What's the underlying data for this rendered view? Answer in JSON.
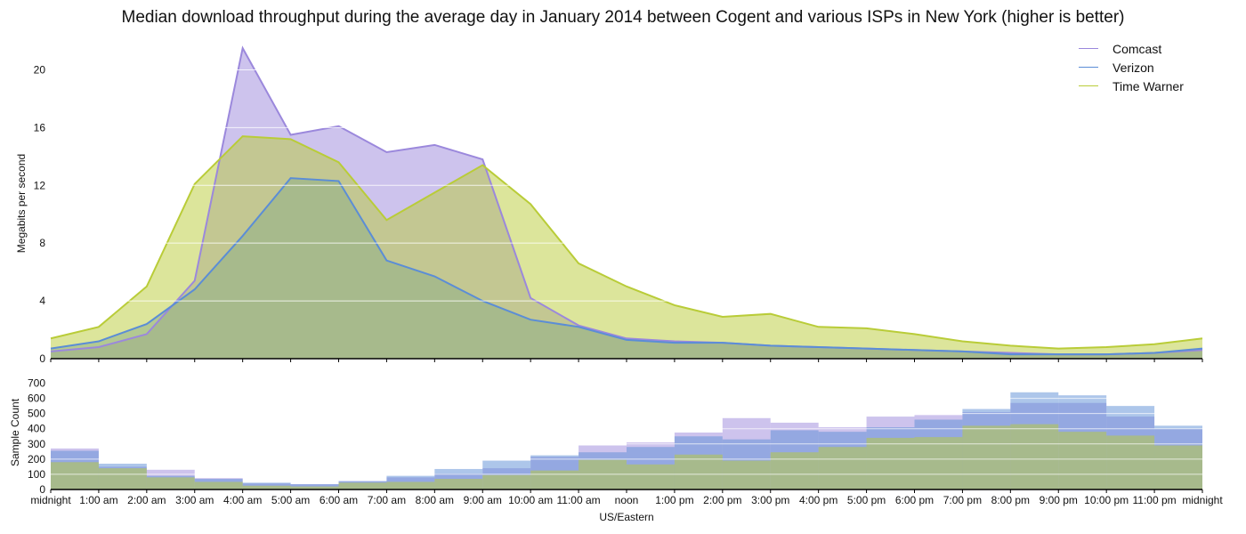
{
  "title": "Median download throughput during the average day in January 2014 between Cogent and various ISPs in New York (higher is better)",
  "colors": {
    "Comcast": "#9b88dc",
    "Verizon": "#5b8dd6",
    "Time Warner": "#b9cc38",
    "grid": "#ffffff",
    "axis": "#000000"
  },
  "chart_data": [
    {
      "type": "area",
      "ylabel": "Megabits per second",
      "ylim": [
        0,
        22
      ],
      "yticks": [
        0,
        4,
        8,
        12,
        16,
        20
      ],
      "x": [
        "midnight",
        "1:00 am",
        "2:00 am",
        "3:00 am",
        "4:00 am",
        "5:00 am",
        "6:00 am",
        "7:00 am",
        "8:00 am",
        "9:00 am",
        "10:00 am",
        "11:00 am",
        "noon",
        "1:00 pm",
        "2:00 pm",
        "3:00 pm",
        "4:00 pm",
        "5:00 pm",
        "6:00 pm",
        "7:00 pm",
        "8:00 pm",
        "9:00 pm",
        "10:00 pm",
        "11:00 pm",
        "midnight"
      ],
      "legend": "top-right",
      "series": [
        {
          "name": "Comcast",
          "values": [
            0.5,
            0.8,
            1.7,
            5.4,
            21.5,
            15.5,
            16.1,
            14.3,
            14.8,
            13.8,
            4.2,
            2.3,
            1.4,
            1.2,
            1.1,
            0.9,
            0.8,
            0.7,
            0.6,
            0.5,
            0.4,
            0.3,
            0.3,
            0.4,
            0.6
          ]
        },
        {
          "name": "Verizon",
          "values": [
            0.7,
            1.2,
            2.4,
            4.8,
            8.5,
            12.5,
            12.3,
            6.8,
            5.7,
            4.0,
            2.7,
            2.2,
            1.3,
            1.1,
            1.1,
            0.9,
            0.8,
            0.7,
            0.6,
            0.5,
            0.3,
            0.3,
            0.3,
            0.4,
            0.7
          ]
        },
        {
          "name": "Time Warner",
          "values": [
            1.4,
            2.2,
            5.0,
            12.1,
            15.4,
            15.2,
            13.6,
            9.6,
            11.5,
            13.4,
            10.7,
            6.6,
            5.0,
            3.7,
            2.9,
            3.1,
            2.2,
            2.1,
            1.7,
            1.2,
            0.9,
            0.7,
            0.8,
            1.0,
            1.4
          ]
        }
      ]
    },
    {
      "type": "bar",
      "ylabel": "Sample Count",
      "xlabel": "US/Eastern",
      "ylim": [
        0,
        750
      ],
      "yticks": [
        0,
        100,
        200,
        300,
        400,
        500,
        600,
        700
      ],
      "categories": [
        "midnight",
        "1:00 am",
        "2:00 am",
        "3:00 am",
        "4:00 am",
        "5:00 am",
        "6:00 am",
        "7:00 am",
        "8:00 am",
        "9:00 am",
        "10:00 am",
        "11:00 am",
        "noon",
        "1:00 pm",
        "2:00 pm",
        "3:00 pm",
        "4:00 pm",
        "5:00 pm",
        "6:00 pm",
        "7:00 pm",
        "8:00 pm",
        "9:00 pm",
        "10:00 pm",
        "11:00 pm"
      ],
      "xtick_labels": [
        "midnight",
        "1:00 am",
        "2:00 am",
        "3:00 am",
        "4:00 am",
        "5:00 am",
        "6:00 am",
        "7:00 am",
        "8:00 am",
        "9:00 am",
        "10:00 am",
        "11:00 am",
        "noon",
        "1:00 pm",
        "2:00 pm",
        "3:00 pm",
        "4:00 pm",
        "5:00 pm",
        "6:00 pm",
        "7:00 pm",
        "8:00 pm",
        "9:00 pm",
        "10:00 pm",
        "11:00 pm",
        "midnight"
      ],
      "series": [
        {
          "name": "Comcast",
          "values": [
            270,
            150,
            130,
            75,
            40,
            35,
            55,
            80,
            105,
            140,
            215,
            290,
            310,
            375,
            470,
            440,
            410,
            480,
            490,
            510,
            570,
            570,
            480,
            400
          ]
        },
        {
          "name": "Verizon",
          "values": [
            255,
            170,
            90,
            70,
            45,
            35,
            55,
            90,
            135,
            190,
            225,
            245,
            280,
            350,
            330,
            390,
            380,
            410,
            460,
            530,
            640,
            620,
            550,
            420
          ]
        },
        {
          "name": "Time Warner",
          "values": [
            180,
            140,
            80,
            50,
            25,
            20,
            45,
            50,
            70,
            95,
            125,
            195,
            165,
            230,
            190,
            245,
            280,
            340,
            345,
            420,
            430,
            380,
            355,
            290
          ]
        }
      ]
    }
  ]
}
